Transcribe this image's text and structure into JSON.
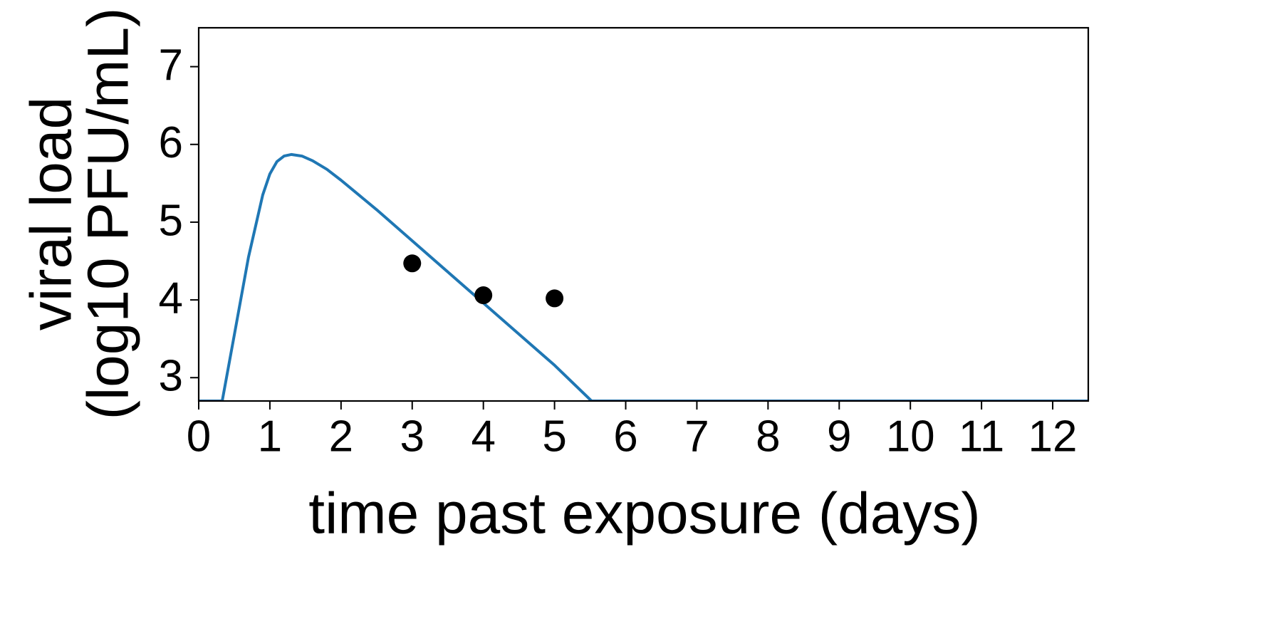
{
  "chart_data": {
    "type": "line",
    "title": "",
    "xlabel": "time past exposure (days)",
    "ylabel_line1": "viral load",
    "ylabel_line2": "(log10 PFU/mL)",
    "xlim": [
      0,
      12.5
    ],
    "ylim": [
      2.7,
      7.5
    ],
    "x_ticks": [
      0,
      1,
      2,
      3,
      4,
      5,
      6,
      7,
      8,
      9,
      10,
      11,
      12
    ],
    "y_ticks": [
      3,
      4,
      5,
      6,
      7
    ],
    "grid": false,
    "legend": "none",
    "series": [
      {
        "kind": "line",
        "color": "#1f77b4",
        "x": [
          0,
          0.33,
          0.5,
          0.7,
          0.9,
          1.0,
          1.1,
          1.2,
          1.3,
          1.45,
          1.6,
          1.8,
          2.0,
          2.5,
          3.0,
          3.5,
          4.0,
          4.5,
          5.0,
          5.52,
          6,
          7,
          8,
          9,
          10,
          11,
          12,
          12.5
        ],
        "y": [
          2.7,
          2.7,
          3.55,
          4.55,
          5.35,
          5.62,
          5.78,
          5.85,
          5.87,
          5.85,
          5.79,
          5.68,
          5.54,
          5.16,
          4.76,
          4.36,
          3.96,
          3.56,
          3.16,
          2.7,
          2.7,
          2.7,
          2.7,
          2.7,
          2.7,
          2.7,
          2.7,
          2.7
        ]
      },
      {
        "kind": "scatter",
        "color": "#000000",
        "x": [
          3,
          4,
          5
        ],
        "y": [
          4.47,
          4.06,
          4.02
        ]
      }
    ]
  }
}
